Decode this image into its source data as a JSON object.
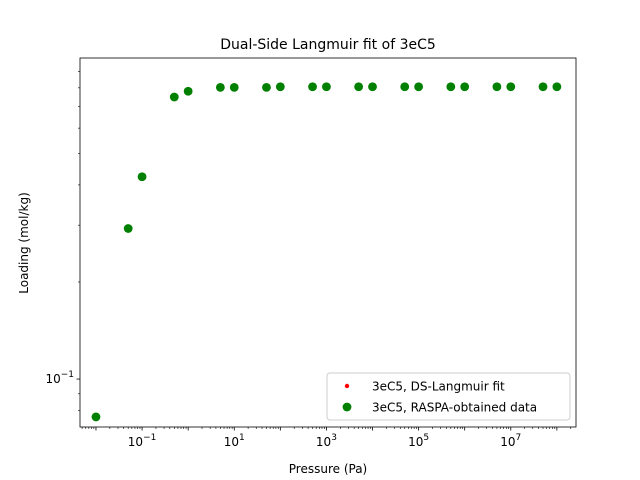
{
  "chart_data": {
    "type": "scatter",
    "title": "Dual-Side Langmuir fit of 3eC5",
    "xlabel": "Pressure (Pa)",
    "ylabel": "Loading (mol/kg)",
    "x_scale": "log",
    "y_scale": "log",
    "xlim": [
      0.0045,
      260000000.0
    ],
    "ylim": [
      0.071,
      0.99
    ],
    "x_ticks": [
      {
        "value": 0.1,
        "base": "10",
        "exp": "−1"
      },
      {
        "value": 10,
        "base": "10",
        "exp": "1"
      },
      {
        "value": 1000,
        "base": "10",
        "exp": "3"
      },
      {
        "value": 100000,
        "base": "10",
        "exp": "5"
      },
      {
        "value": 10000000,
        "base": "10",
        "exp": "7"
      }
    ],
    "y_ticks": [
      {
        "value": 0.1,
        "base": "10",
        "exp": "−1"
      }
    ],
    "grid": false,
    "legend_position": "lower-right",
    "series": [
      {
        "name": "3eC5, DS-Langmuir fit",
        "marker": "point",
        "color": "#ff0000",
        "x": [],
        "y": []
      },
      {
        "name": "3eC5, RASPA-obtained data",
        "marker": "circle",
        "color": "#008000",
        "x": [
          0.01,
          0.05,
          0.1,
          0.5,
          1,
          5,
          10,
          50,
          100,
          500,
          1000,
          5000,
          10000,
          50000,
          100000,
          500000,
          1000000,
          5000000,
          10000000,
          50000000,
          100000000
        ],
        "y": [
          0.0763,
          0.293,
          0.424,
          0.7495,
          0.7807,
          0.8027,
          0.8027,
          0.8027,
          0.8064,
          0.8064,
          0.8064,
          0.8064,
          0.8064,
          0.8064,
          0.8064,
          0.8064,
          0.8064,
          0.8064,
          0.8064,
          0.8064,
          0.8064
        ]
      }
    ]
  }
}
